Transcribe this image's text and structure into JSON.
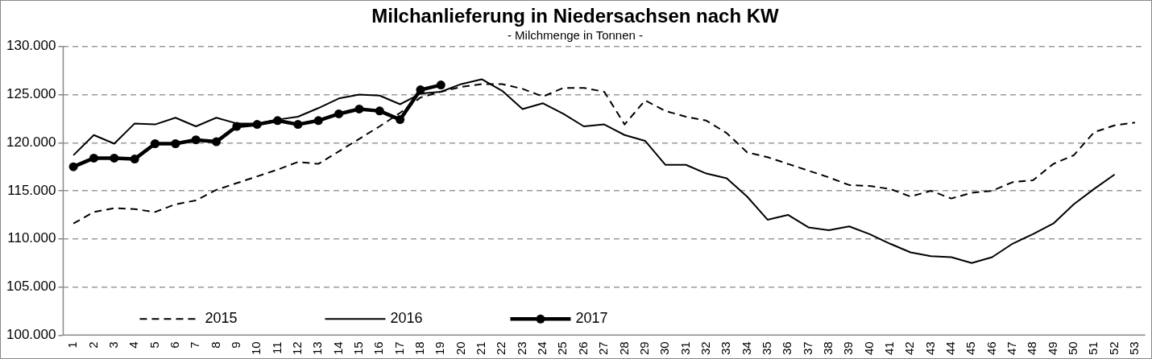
{
  "chart_data": {
    "type": "line",
    "title": "Milchanlieferung in Niedersachsen nach KW",
    "subtitle": "- Milchmenge in Tonnen -",
    "categories": [
      "1",
      "2",
      "3",
      "4",
      "5",
      "6",
      "7",
      "8",
      "9",
      "10",
      "11",
      "12",
      "13",
      "14",
      "15",
      "16",
      "17",
      "18",
      "19",
      "20",
      "21",
      "22",
      "23",
      "24",
      "25",
      "26",
      "27",
      "28",
      "29",
      "30",
      "31",
      "32",
      "33",
      "34",
      "35",
      "36",
      "37",
      "38",
      "39",
      "40",
      "41",
      "42",
      "43",
      "44",
      "45",
      "46",
      "47",
      "48",
      "49",
      "50",
      "51",
      "52",
      "53"
    ],
    "series": [
      {
        "name": "2015",
        "color": "#000000",
        "line_style": "dashed",
        "marker": "none",
        "values": [
          111600,
          112800,
          113200,
          113100,
          112800,
          113600,
          114000,
          115100,
          115800,
          116500,
          117200,
          118000,
          117800,
          119100,
          120400,
          121700,
          123100,
          124700,
          125300,
          125800,
          126100,
          126100,
          125600,
          124800,
          125700,
          125700,
          125300,
          121900,
          124400,
          123300,
          122700,
          122300,
          121000,
          119000,
          118500,
          117800,
          117100,
          116400,
          115600,
          115500,
          115200,
          114400,
          115000,
          114200,
          114800,
          115000,
          115900,
          116100,
          117800,
          118700,
          121100,
          121800,
          122100
        ]
      },
      {
        "name": "2016",
        "color": "#000000",
        "line_style": "solid",
        "marker": "none",
        "values": [
          118700,
          120800,
          119900,
          122000,
          121900,
          122600,
          121700,
          122600,
          122000,
          122000,
          122400,
          122700,
          123600,
          124600,
          125000,
          124900,
          124000,
          125100,
          125300,
          126100,
          126600,
          125400,
          123500,
          124100,
          123000,
          121700,
          121900,
          120800,
          120200,
          117700,
          117700,
          116800,
          116300,
          114400,
          112000,
          112500,
          111200,
          110900,
          111300,
          110500,
          109500,
          108600,
          108200,
          108100,
          107500,
          108100,
          109500,
          110500,
          111600,
          113600,
          115200,
          116700,
          null
        ]
      },
      {
        "name": "2017",
        "color": "#000000",
        "line_style": "solid",
        "marker": "circle",
        "values": [
          117500,
          118400,
          118400,
          118300,
          119900,
          119900,
          120300,
          120100,
          121700,
          121900,
          122300,
          121900,
          122300,
          123000,
          123500,
          123300,
          122400,
          125500,
          126000,
          null,
          null,
          null,
          null,
          null,
          null,
          null,
          null,
          null,
          null,
          null,
          null,
          null,
          null,
          null,
          null,
          null,
          null,
          null,
          null,
          null,
          null,
          null,
          null,
          null,
          null,
          null,
          null,
          null,
          null,
          null,
          null,
          null,
          null
        ]
      }
    ],
    "ylim": [
      100000,
      130000
    ],
    "yticks": [
      {
        "value": 100000,
        "label": "100.000"
      },
      {
        "value": 105000,
        "label": "105.000"
      },
      {
        "value": 110000,
        "label": "110.000"
      },
      {
        "value": 115000,
        "label": "115.000"
      },
      {
        "value": 120000,
        "label": "120.000"
      },
      {
        "value": 125000,
        "label": "125.000"
      },
      {
        "value": 130000,
        "label": "130.000"
      }
    ],
    "grid": "y",
    "legend": "bottom left"
  }
}
